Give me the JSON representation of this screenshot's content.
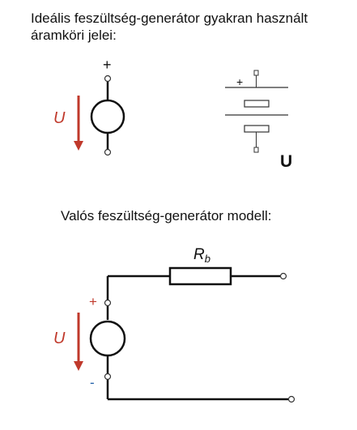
{
  "heading_ideal": {
    "line1": "Ideális feszültség-generátor gyakran használt",
    "line2": "áramköri jelei:"
  },
  "heading_real": "Valós feszültség-generátor modell:",
  "ideal_symbol": {
    "plus": "+",
    "voltage_label": "U"
  },
  "battery_symbol": {
    "plus": "+",
    "label": "U"
  },
  "real_model": {
    "resistor_label": "R",
    "resistor_subscript": "b",
    "plus": "+",
    "minus": "-",
    "voltage_label": "U"
  },
  "colors": {
    "wire": "#111111",
    "arrow": "#c0392b",
    "text": "#111111",
    "battery": "#333333"
  }
}
